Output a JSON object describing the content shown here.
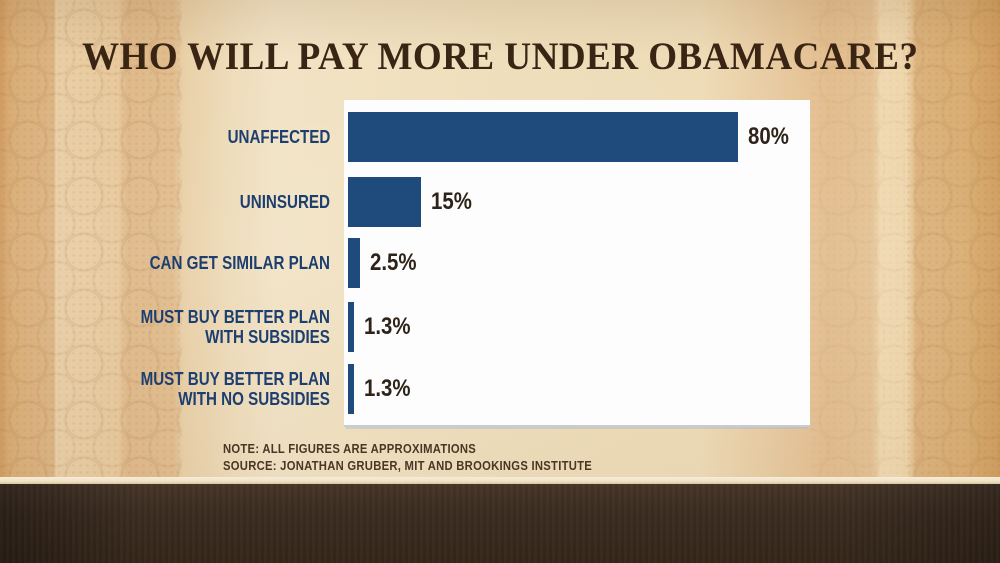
{
  "title": "WHO WILL PAY MORE UNDER OBAMACARE?",
  "chart_data": {
    "type": "bar",
    "orientation": "horizontal",
    "title": "WHO WILL PAY MORE UNDER OBAMACARE?",
    "categories": [
      "UNAFFECTED",
      "UNINSURED",
      "CAN GET SIMILAR PLAN",
      "MUST BUY BETTER PLAN WITH SUBSIDIES",
      "MUST BUY BETTER PLAN WITH NO SUBSIDIES"
    ],
    "category_lines": [
      [
        "UNAFFECTED"
      ],
      [
        "UNINSURED"
      ],
      [
        "CAN GET SIMILAR PLAN"
      ],
      [
        "MUST BUY BETTER PLAN",
        "WITH SUBSIDIES"
      ],
      [
        "MUST BUY BETTER PLAN",
        "WITH NO SUBSIDIES"
      ]
    ],
    "values": [
      80,
      15,
      2.5,
      1.3,
      1.3
    ],
    "value_labels": [
      "80%",
      "15%",
      "2.5%",
      "1.3%",
      "1.3%"
    ],
    "unit": "percent",
    "xlim": [
      0,
      95
    ],
    "grid": false,
    "legend": "none"
  },
  "footnote": {
    "note": "NOTE: ALL FIGURES ARE APPROXIMATIONS",
    "source": "SOURCE: JONATHAN GRUBER, MIT AND BROOKINGS INSTITUTE"
  },
  "colors": {
    "bar-color": "#1f4a7c",
    "label-color": "#1d3f70",
    "value-color": "#2d2318",
    "title-color": "#3a2414",
    "note-color": "#4a3624",
    "panel-color": "#fdfdfd",
    "band-color": "#3b2c21",
    "background-base": "#eedcb8"
  }
}
